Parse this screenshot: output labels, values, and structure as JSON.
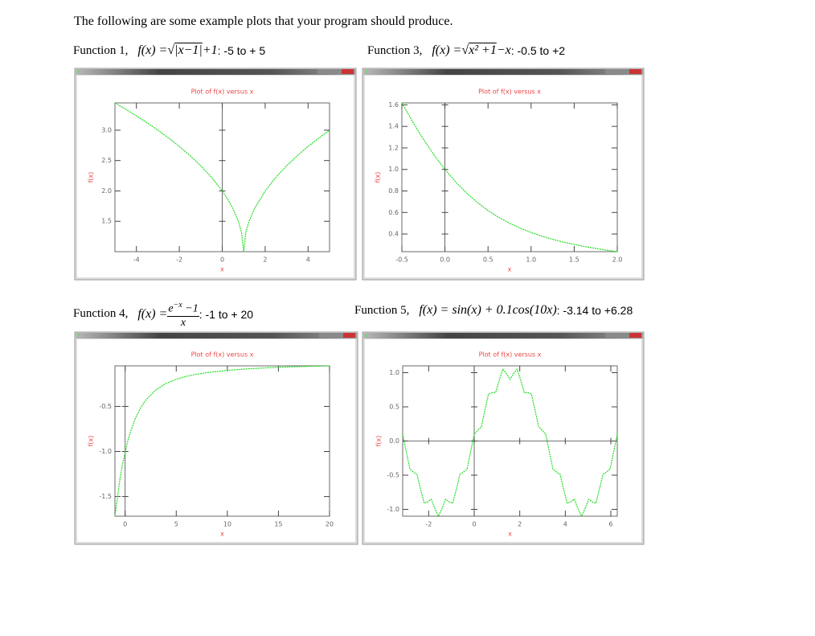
{
  "intro": "The following are some example plots that your program should produce.",
  "captions": [
    {
      "label": "Function 1,",
      "lhs": "f(x) =",
      "radical": "√",
      "radicand": "|x−1|",
      "rest": "+1",
      "range": ": -5 to + 5"
    },
    {
      "label": "Function 3,",
      "lhs": "f(x) =",
      "radical": "√",
      "radicand": "x² +1",
      "rest": "−x",
      "range": ": -0.5 to +2"
    },
    {
      "label": "Function 4,",
      "lhs": "f(x) =",
      "numerator": "e",
      "numerator_exp": "−x",
      "numerator_rest": " −1",
      "denominator": "x",
      "range": ": -1 to + 20"
    },
    {
      "label": "Function 5,",
      "lhs": "f(x) = sin(x) + 0.1cos(10x)",
      "range": ": -3.14 to +6.28"
    }
  ],
  "chart_data": [
    {
      "type": "line",
      "title": "Plot of f(x) versus x",
      "xlabel": "x",
      "ylabel": "f(x)",
      "color": "#22dd22",
      "zero_axes": true,
      "x": [
        -5,
        -4.5,
        -4,
        -3.5,
        -3,
        -2.5,
        -2,
        -1.5,
        -1,
        -0.5,
        0,
        0.25,
        0.5,
        0.75,
        0.9,
        1,
        1.1,
        1.25,
        1.5,
        2,
        2.5,
        3,
        3.5,
        4,
        4.5,
        5
      ],
      "values": [
        3.449,
        3.345,
        3.236,
        3.121,
        3.0,
        2.871,
        2.732,
        2.581,
        2.414,
        2.225,
        2.0,
        1.866,
        1.707,
        1.5,
        1.316,
        1.0,
        1.316,
        1.5,
        1.707,
        2.0,
        2.225,
        2.414,
        2.581,
        2.732,
        2.871,
        3.0
      ],
      "xlim": [
        -5,
        5
      ],
      "ylim": [
        1,
        3.449
      ],
      "xticks": [
        -4,
        -2,
        0,
        2,
        4
      ],
      "yticks": [
        {
          "value": 3,
          "label": "3.0"
        },
        2.5,
        {
          "value": 2,
          "label": "2.0"
        },
        1.5
      ]
    },
    {
      "type": "line",
      "title": "Plot of f(x) versus x",
      "xlabel": "x",
      "ylabel": "f(x)",
      "color": "#22dd22",
      "zero_axes": true,
      "x": [
        -0.5,
        -0.375,
        -0.25,
        -0.125,
        0,
        0.125,
        0.25,
        0.375,
        0.5,
        0.625,
        0.75,
        0.875,
        1,
        1.125,
        1.25,
        1.375,
        1.5,
        1.625,
        1.75,
        1.875,
        2
      ],
      "values": [
        1.618,
        1.443,
        1.281,
        1.133,
        1.0,
        0.883,
        0.781,
        0.693,
        0.618,
        0.554,
        0.5,
        0.454,
        0.414,
        0.38,
        0.351,
        0.325,
        0.303,
        0.283,
        0.266,
        0.25,
        0.236
      ],
      "xlim": [
        -0.5,
        2
      ],
      "ylim": [
        0.236,
        1.618
      ],
      "xticks": [
        -0.5,
        {
          "value": 0,
          "label": "0.0"
        },
        0.5,
        {
          "value": 1,
          "label": "1.0"
        },
        1.5,
        {
          "value": 2,
          "label": "2.0"
        }
      ],
      "yticks": [
        1.6,
        1.4,
        1.2,
        {
          "value": 1,
          "label": "1.0"
        },
        0.8,
        0.6,
        0.4
      ]
    },
    {
      "type": "line",
      "title": "Plot of f(x) versus x",
      "xlabel": "x",
      "ylabel": "f(x)",
      "color": "#22dd22",
      "zero_axes": true,
      "x": [
        -1,
        -0.5,
        -0.25,
        0.25,
        0.5,
        1,
        1.5,
        2,
        3,
        4,
        5,
        6,
        7,
        8,
        10,
        12,
        14,
        16,
        18,
        20
      ],
      "values": [
        -1.718,
        -1.297,
        -1.136,
        -0.885,
        -0.787,
        -0.632,
        -0.518,
        -0.432,
        -0.317,
        -0.245,
        -0.199,
        -0.1663,
        -0.1427,
        -0.125,
        -0.1,
        -0.0833,
        -0.0714,
        -0.0625,
        -0.0556,
        -0.05
      ],
      "xlim": [
        -1,
        20
      ],
      "ylim": [
        -1.718,
        -0.05
      ],
      "xticks": [
        0,
        5,
        10,
        15,
        20
      ],
      "yticks": [
        -0.5,
        {
          "value": -1,
          "label": "-1.0"
        },
        -1.5
      ]
    },
    {
      "type": "line",
      "title": "Plot of f(x) versus x",
      "xlabel": "x",
      "ylabel": "f(x)",
      "color": "#22dd22",
      "zero_axes": true,
      "x": [
        -3.142,
        -2.985,
        -2.827,
        -2.67,
        -2.513,
        -2.356,
        -2.199,
        -2.042,
        -1.885,
        -1.728,
        -1.571,
        -1.414,
        -1.257,
        -1.1,
        -0.942,
        -0.785,
        -0.628,
        -0.471,
        -0.314,
        -0.157,
        0,
        0.157,
        0.314,
        0.471,
        0.628,
        0.785,
        0.942,
        1.1,
        1.257,
        1.414,
        1.571,
        1.728,
        1.885,
        2.042,
        2.199,
        2.356,
        2.513,
        2.67,
        2.827,
        2.985,
        3.142,
        3.299,
        3.456,
        3.613,
        3.77,
        3.927,
        4.084,
        4.241,
        4.398,
        4.555,
        4.712,
        4.869,
        5.027,
        5.184,
        5.341,
        5.498,
        5.655,
        5.812,
        5.969,
        6.126,
        6.283
      ],
      "values": [
        0.1,
        -0.156,
        -0.409,
        -0.454,
        -0.488,
        -0.707,
        -0.909,
        -0.891,
        -0.851,
        -0.988,
        -1.1,
        -0.988,
        -0.851,
        -0.891,
        -0.909,
        -0.707,
        -0.488,
        -0.454,
        -0.409,
        -0.156,
        0.1,
        0.156,
        0.209,
        0.454,
        0.688,
        0.707,
        0.709,
        0.891,
        1.051,
        0.988,
        0.9,
        0.988,
        1.051,
        0.891,
        0.709,
        0.707,
        0.688,
        0.454,
        0.209,
        0.156,
        0.1,
        -0.156,
        -0.409,
        -0.454,
        -0.488,
        -0.707,
        -0.909,
        -0.891,
        -0.851,
        -0.988,
        -1.1,
        -0.988,
        -0.851,
        -0.891,
        -0.909,
        -0.707,
        -0.488,
        -0.454,
        -0.409,
        -0.156,
        0.1
      ],
      "xlim": [
        -3.142,
        6.283
      ],
      "ylim": [
        -1.1,
        1.1
      ],
      "xticks": [
        -2,
        0,
        2,
        4,
        6
      ],
      "yticks": [
        {
          "value": 1,
          "label": "1.0"
        },
        0.5,
        {
          "value": 0,
          "label": "0.0"
        },
        -0.5,
        {
          "value": -1,
          "label": "-1.0"
        }
      ]
    }
  ]
}
